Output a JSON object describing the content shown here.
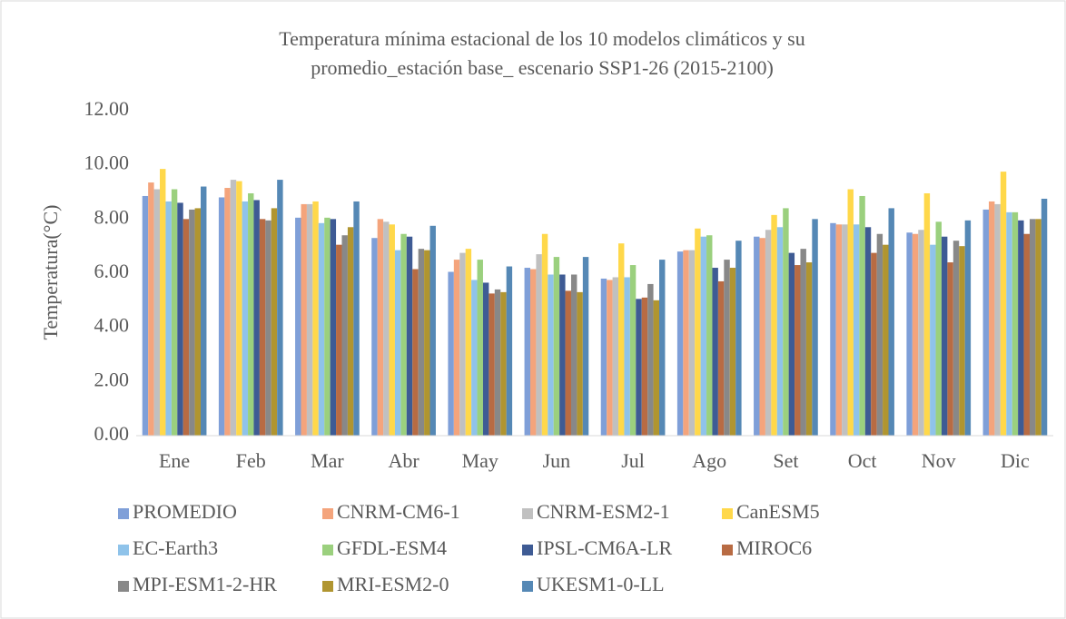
{
  "chart_data": {
    "type": "bar",
    "title": [
      "Temperatura mínima estacional de los 10 modelos climáticos y su",
      "promedio_estación base_ escenario SSP1-26 (2015-2100)"
    ],
    "y_label": "Temperatura(°C)",
    "categories": [
      "Ene",
      "Feb",
      "Mar",
      "Abr",
      "May",
      "Jun",
      "Jul",
      "Ago",
      "Set",
      "Oct",
      "Nov",
      "Dic"
    ],
    "series": [
      {
        "name": "PROMEDIO",
        "color": "#7f9fd8",
        "values": [
          8.85,
          8.8,
          8.05,
          7.3,
          6.05,
          6.2,
          5.8,
          6.8,
          7.35,
          7.85,
          7.5,
          8.35
        ]
      },
      {
        "name": "CNRM-CM6-1",
        "color": "#f4a47c",
        "values": [
          9.35,
          9.15,
          8.55,
          8.0,
          6.5,
          6.15,
          5.75,
          6.85,
          7.3,
          7.8,
          7.45,
          8.65
        ]
      },
      {
        "name": "CNRM-ESM2-1",
        "color": "#c0c0c0",
        "values": [
          9.1,
          9.45,
          8.55,
          7.9,
          6.75,
          6.7,
          5.85,
          6.85,
          7.6,
          7.8,
          7.6,
          8.55
        ]
      },
      {
        "name": "CanESM5",
        "color": "#ffd84a",
        "values": [
          9.85,
          9.4,
          8.65,
          7.8,
          6.9,
          7.45,
          7.1,
          7.65,
          8.15,
          9.1,
          8.95,
          9.75
        ]
      },
      {
        "name": "EC-Earth3",
        "color": "#8fc3ea",
        "values": [
          8.65,
          8.65,
          7.85,
          6.85,
          5.75,
          5.95,
          5.85,
          7.35,
          7.7,
          7.8,
          7.05,
          8.25
        ]
      },
      {
        "name": "GFDL-ESM4",
        "color": "#9bd07e",
        "values": [
          9.1,
          8.95,
          8.05,
          7.45,
          6.5,
          6.6,
          6.3,
          7.4,
          8.4,
          8.85,
          7.9,
          8.25
        ]
      },
      {
        "name": "IPSL-CM6A-LR",
        "color": "#3e5b94",
        "values": [
          8.6,
          8.7,
          8.0,
          7.35,
          5.65,
          5.95,
          5.05,
          6.2,
          6.75,
          7.7,
          7.35,
          7.95
        ]
      },
      {
        "name": "MIROC6",
        "color": "#b86b43",
        "values": [
          8.0,
          8.0,
          7.05,
          6.15,
          5.25,
          5.35,
          5.1,
          5.7,
          6.3,
          6.75,
          6.4,
          7.45
        ]
      },
      {
        "name": "MPI-ESM1-2-HR",
        "color": "#888888",
        "values": [
          8.35,
          7.95,
          7.4,
          6.9,
          5.4,
          5.95,
          5.6,
          6.5,
          6.9,
          7.45,
          7.2,
          8.0
        ]
      },
      {
        "name": "MRI-ESM2-0",
        "color": "#b09530",
        "values": [
          8.4,
          8.4,
          7.7,
          6.85,
          5.3,
          5.3,
          5.0,
          6.2,
          6.4,
          7.05,
          7.0,
          8.0
        ]
      },
      {
        "name": "UKESM1-0-LL",
        "color": "#5588b5",
        "values": [
          9.2,
          9.45,
          8.65,
          7.75,
          6.25,
          6.6,
          6.5,
          7.2,
          8.0,
          8.4,
          7.95,
          8.75
        ]
      }
    ],
    "ylim": [
      0,
      12
    ],
    "yticks": [
      {
        "value": 0,
        "label": "0.00"
      },
      {
        "value": 2,
        "label": "2.00"
      },
      {
        "value": 4,
        "label": "4.00"
      },
      {
        "value": 6,
        "label": "6.00"
      },
      {
        "value": 8,
        "label": "8.00"
      },
      {
        "value": 10,
        "label": "10.00"
      },
      {
        "value": 12,
        "label": "12.00"
      }
    ],
    "grid": false,
    "legend": "bottom"
  }
}
